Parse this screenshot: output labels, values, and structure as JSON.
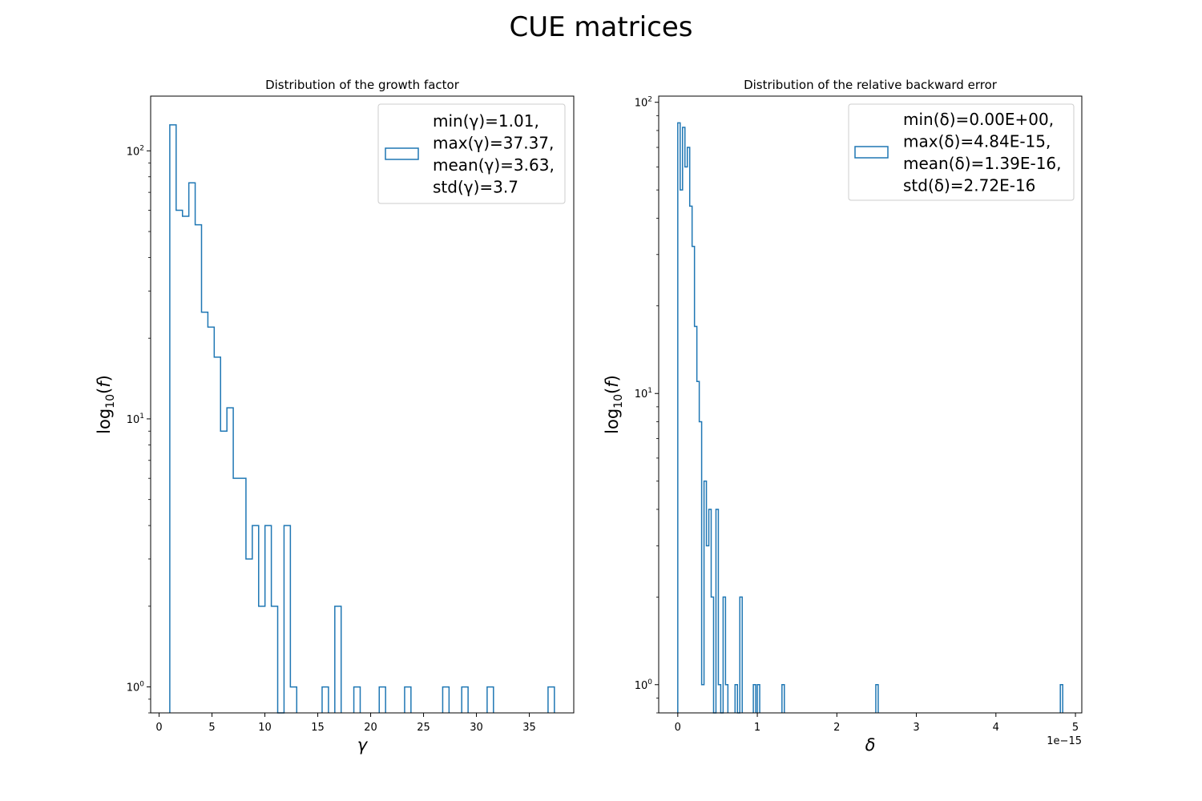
{
  "figure": {
    "suptitle": "CUE matrices"
  },
  "chart_data": [
    {
      "type": "histogram",
      "title": "Distribution of the growth factor",
      "xlabel": "γ",
      "ylabel_prefix": "log",
      "ylabel_sub": "10",
      "ylabel_var": "f",
      "yscale": "log",
      "xlim": [
        -0.8,
        39.2
      ],
      "ylim": [
        0.8,
        160
      ],
      "xticks": [
        0,
        5,
        10,
        15,
        20,
        25,
        30,
        35
      ],
      "yticks": [
        {
          "value": 1,
          "label_base": "10",
          "label_exp": "0"
        },
        {
          "value": 10,
          "label_base": "10",
          "label_exp": "1"
        },
        {
          "value": 100,
          "label_base": "10",
          "label_exp": "2"
        }
      ],
      "x_offset_label": "",
      "color": "#1f77b4",
      "bins": [
        {
          "x0": 1.01,
          "x1": 1.61,
          "count": 125
        },
        {
          "x0": 1.61,
          "x1": 2.21,
          "count": 60
        },
        {
          "x0": 2.21,
          "x1": 2.81,
          "count": 57
        },
        {
          "x0": 2.81,
          "x1": 3.41,
          "count": 76
        },
        {
          "x0": 3.41,
          "x1": 4.01,
          "count": 53
        },
        {
          "x0": 4.01,
          "x1": 4.61,
          "count": 25
        },
        {
          "x0": 4.61,
          "x1": 5.21,
          "count": 22
        },
        {
          "x0": 5.21,
          "x1": 5.81,
          "count": 17
        },
        {
          "x0": 5.81,
          "x1": 6.41,
          "count": 9
        },
        {
          "x0": 6.41,
          "x1": 7.01,
          "count": 11
        },
        {
          "x0": 7.01,
          "x1": 7.61,
          "count": 6
        },
        {
          "x0": 7.61,
          "x1": 8.21,
          "count": 6
        },
        {
          "x0": 8.21,
          "x1": 8.81,
          "count": 3
        },
        {
          "x0": 8.81,
          "x1": 9.41,
          "count": 4
        },
        {
          "x0": 9.41,
          "x1": 10.01,
          "count": 2
        },
        {
          "x0": 10.01,
          "x1": 10.61,
          "count": 4
        },
        {
          "x0": 10.61,
          "x1": 11.21,
          "count": 2
        },
        {
          "x0": 11.21,
          "x1": 11.81,
          "count": 0
        },
        {
          "x0": 11.81,
          "x1": 12.41,
          "count": 4
        },
        {
          "x0": 12.41,
          "x1": 13.01,
          "count": 1
        },
        {
          "x0": 15.41,
          "x1": 16.01,
          "count": 1
        },
        {
          "x0": 16.61,
          "x1": 17.21,
          "count": 2
        },
        {
          "x0": 18.41,
          "x1": 19.01,
          "count": 1
        },
        {
          "x0": 20.81,
          "x1": 21.41,
          "count": 1
        },
        {
          "x0": 23.21,
          "x1": 23.81,
          "count": 1
        },
        {
          "x0": 26.81,
          "x1": 27.41,
          "count": 1
        },
        {
          "x0": 28.61,
          "x1": 29.21,
          "count": 1
        },
        {
          "x0": 31.01,
          "x1": 31.61,
          "count": 1
        },
        {
          "x0": 36.77,
          "x1": 37.37,
          "count": 1
        }
      ],
      "legend": {
        "location": "upper right",
        "lines": [
          "min(γ)=1.01,",
          "max(γ)=37.37,",
          "mean(γ)=3.63,",
          "std(γ)=3.7"
        ]
      }
    },
    {
      "type": "histogram",
      "title": "Distribution of the relative backward error",
      "xlabel": "δ",
      "ylabel_prefix": "log",
      "ylabel_sub": "10",
      "ylabel_var": "f",
      "yscale": "log",
      "xlim": [
        -0.24,
        5.08
      ],
      "ylim": [
        0.8,
        105
      ],
      "xticks": [
        0,
        1,
        2,
        3,
        4,
        5
      ],
      "yticks": [
        {
          "value": 1,
          "label_base": "10",
          "label_exp": "0"
        },
        {
          "value": 10,
          "label_base": "10",
          "label_exp": "1"
        },
        {
          "value": 100,
          "label_base": "10",
          "label_exp": "2"
        }
      ],
      "x_offset_label": "1e−15",
      "color": "#1f77b4",
      "bins": [
        {
          "x0": 0.0,
          "x1": 0.03,
          "count": 85
        },
        {
          "x0": 0.03,
          "x1": 0.06,
          "count": 50
        },
        {
          "x0": 0.06,
          "x1": 0.09,
          "count": 82
        },
        {
          "x0": 0.09,
          "x1": 0.12,
          "count": 60
        },
        {
          "x0": 0.12,
          "x1": 0.15,
          "count": 70
        },
        {
          "x0": 0.15,
          "x1": 0.18,
          "count": 44
        },
        {
          "x0": 0.18,
          "x1": 0.21,
          "count": 32
        },
        {
          "x0": 0.21,
          "x1": 0.24,
          "count": 17
        },
        {
          "x0": 0.24,
          "x1": 0.27,
          "count": 11
        },
        {
          "x0": 0.27,
          "x1": 0.3,
          "count": 8
        },
        {
          "x0": 0.3,
          "x1": 0.33,
          "count": 1
        },
        {
          "x0": 0.33,
          "x1": 0.36,
          "count": 5
        },
        {
          "x0": 0.36,
          "x1": 0.39,
          "count": 3
        },
        {
          "x0": 0.39,
          "x1": 0.42,
          "count": 4
        },
        {
          "x0": 0.42,
          "x1": 0.45,
          "count": 2
        },
        {
          "x0": 0.45,
          "x1": 0.48,
          "count": 0
        },
        {
          "x0": 0.48,
          "x1": 0.51,
          "count": 4
        },
        {
          "x0": 0.51,
          "x1": 0.54,
          "count": 1
        },
        {
          "x0": 0.54,
          "x1": 0.57,
          "count": 0
        },
        {
          "x0": 0.57,
          "x1": 0.6,
          "count": 2
        },
        {
          "x0": 0.6,
          "x1": 0.63,
          "count": 1
        },
        {
          "x0": 0.72,
          "x1": 0.75,
          "count": 1
        },
        {
          "x0": 0.75,
          "x1": 0.78,
          "count": 0
        },
        {
          "x0": 0.78,
          "x1": 0.81,
          "count": 2
        },
        {
          "x0": 0.95,
          "x1": 0.98,
          "count": 1
        },
        {
          "x0": 1.0,
          "x1": 1.03,
          "count": 1
        },
        {
          "x0": 1.31,
          "x1": 1.34,
          "count": 1
        },
        {
          "x0": 2.49,
          "x1": 2.52,
          "count": 1
        },
        {
          "x0": 4.81,
          "x1": 4.84,
          "count": 1
        }
      ],
      "legend": {
        "location": "upper right",
        "lines": [
          "min(δ)=0.00E+00,",
          "max(δ)=4.84E-15,",
          "mean(δ)=1.39E-16,",
          "std(δ)=2.72E-16"
        ]
      }
    }
  ]
}
